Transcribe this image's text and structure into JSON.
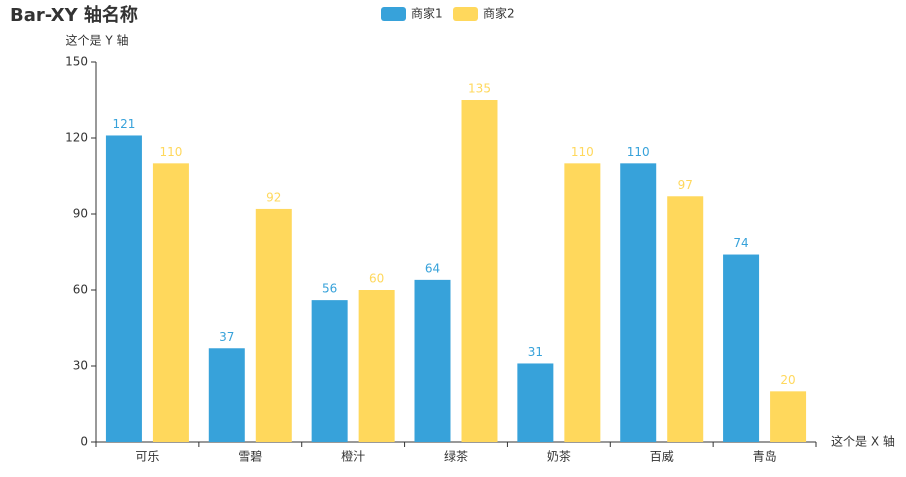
{
  "chart_data": {
    "type": "bar",
    "title": "Bar-XY 轴名称",
    "x_axis_name": "这个是 X 轴",
    "y_axis_name": "这个是 Y 轴",
    "categories": [
      "可乐",
      "雪碧",
      "橙汁",
      "绿茶",
      "奶茶",
      "百威",
      "青岛"
    ],
    "series": [
      {
        "name": "商家1",
        "color": "#37a2da",
        "values": [
          121,
          37,
          56,
          64,
          31,
          110,
          74
        ]
      },
      {
        "name": "商家2",
        "color": "#ffd85c",
        "values": [
          110,
          92,
          60,
          135,
          110,
          97,
          20
        ]
      }
    ],
    "ylim": [
      0,
      150
    ],
    "yticks": [
      0,
      30,
      60,
      90,
      120,
      150
    ],
    "legend_position": "top"
  }
}
